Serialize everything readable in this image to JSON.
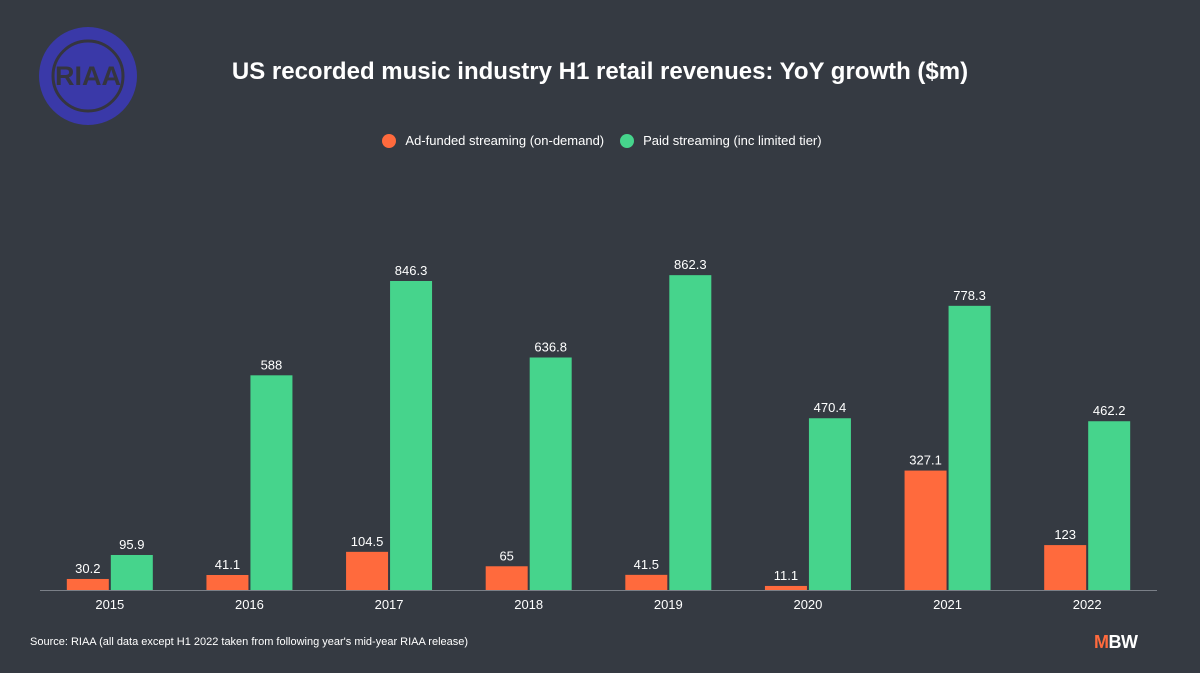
{
  "title": "US recorded music industry H1 retail revenues: YoY growth ($m)",
  "logo_text": "RIAA",
  "source": "Source: RIAA (all data except H1 2022 taken from following year's mid-year RIAA release)",
  "brand": {
    "m": "M",
    "bw": "BW"
  },
  "colors": {
    "ad_funded": "#ff6a3d",
    "paid": "#46d48c",
    "background": "#353a42",
    "logo": "#3a39a8"
  },
  "chart_data": {
    "type": "bar",
    "categories": [
      "2015",
      "2016",
      "2017",
      "2018",
      "2019",
      "2020",
      "2021",
      "2022"
    ],
    "series": [
      {
        "name": "Ad-funded streaming (on-demand)",
        "values": [
          30.2,
          41.1,
          104.5,
          65,
          41.5,
          11.1,
          327.1,
          123
        ]
      },
      {
        "name": "Paid streaming (inc limited tier)",
        "values": [
          95.9,
          588,
          846.3,
          636.8,
          862.3,
          470.4,
          778.3,
          462.2
        ]
      }
    ],
    "ylim": [
      0,
      900
    ],
    "grid": false,
    "legend_position": "top-center",
    "data_labels": true
  }
}
